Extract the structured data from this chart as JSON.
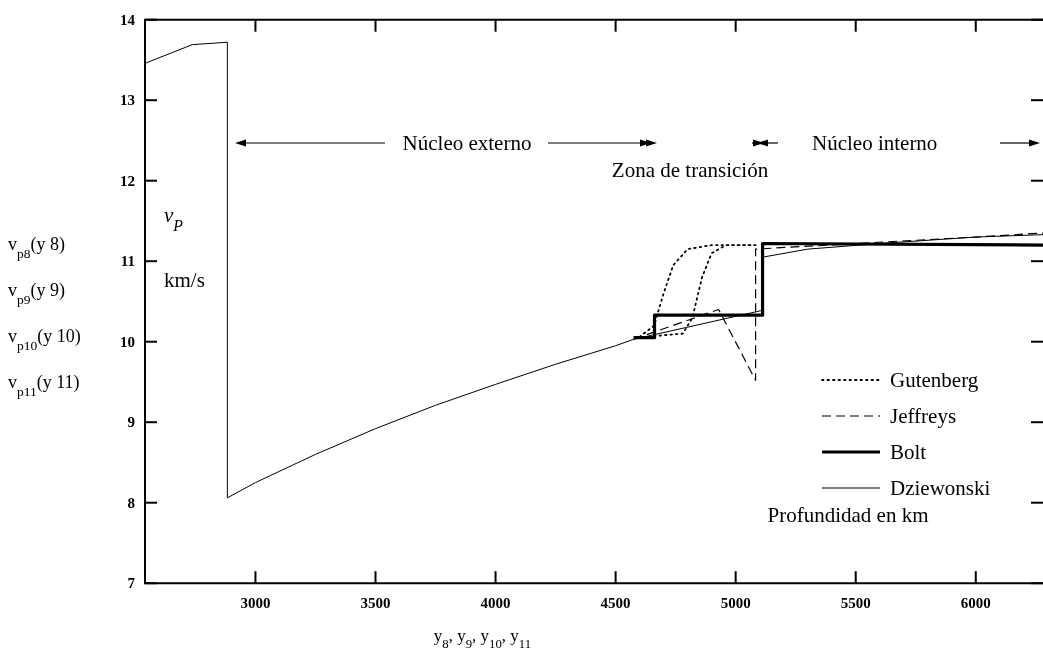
{
  "chart_data": {
    "type": "line",
    "xlabel": "y$_{8}$, y$_{9}$, y$_{10}$, y$_{11}$",
    "ylabel": "v$_{p8}$(y 8)\nv$_{p9}$(y 9)\nv$_{p10}$(y 10)\nv$_{p11}$(y 11)",
    "annotations": [
      "Núcleo externo",
      "Zona de transición",
      "Núcleo interno",
      "Profundidad en km",
      "v$_{P}$",
      "km/s"
    ],
    "xlim": [
      2540,
      6280
    ],
    "ylim": [
      7,
      14
    ],
    "xticks": [
      3000,
      3500,
      4000,
      4500,
      5000,
      5500,
      6000
    ],
    "yticks": [
      7,
      8,
      9,
      10,
      11,
      12,
      13,
      14
    ],
    "grid": false,
    "legend": "bottom right",
    "series": [
      {
        "name": "Gutenberg",
        "color": "#000000",
        "line_style": "dotted",
        "x": [
          4600,
          4660,
          4700,
          4740,
          4800,
          4900,
          5083,
          null,
          4660,
          4780,
          4820,
          4860,
          4900,
          4960,
          5083
        ],
        "values": [
          10.06,
          10.2,
          10.6,
          10.95,
          11.15,
          11.2,
          11.2,
          null,
          10.07,
          10.1,
          10.3,
          10.8,
          11.1,
          11.2,
          11.2
        ]
      },
      {
        "name": "Jeffreys",
        "color": "#000000",
        "line_style": "dashed",
        "x": [
          4575,
          4929,
          5083,
          5083,
          5500,
          6000,
          6280
        ],
        "values": [
          10.03,
          10.4,
          9.52,
          11.15,
          11.22,
          11.3,
          11.35
        ]
      },
      {
        "name": "Bolt",
        "color": "#000000",
        "line_style": "solid",
        "x": [
          4575,
          4662,
          4662,
          5112,
          5112,
          6280
        ],
        "values": [
          10.05,
          10.05,
          10.33,
          10.33,
          11.22,
          11.2
        ]
      },
      {
        "name": "Dziewonski",
        "color": "#000000",
        "line_style": "solid",
        "x": [
          2542,
          2737,
          2883,
          2883,
          3000,
          3250,
          3500,
          3750,
          4000,
          4250,
          4500,
          4575,
          5112,
          5112,
          5300,
          5600,
          6000,
          6280
        ],
        "values": [
          13.46,
          13.69,
          13.72,
          8.06,
          8.25,
          8.6,
          8.92,
          9.21,
          9.47,
          9.72,
          9.95,
          10.03,
          10.39,
          11.05,
          11.15,
          11.22,
          11.3,
          11.33
        ]
      }
    ]
  }
}
